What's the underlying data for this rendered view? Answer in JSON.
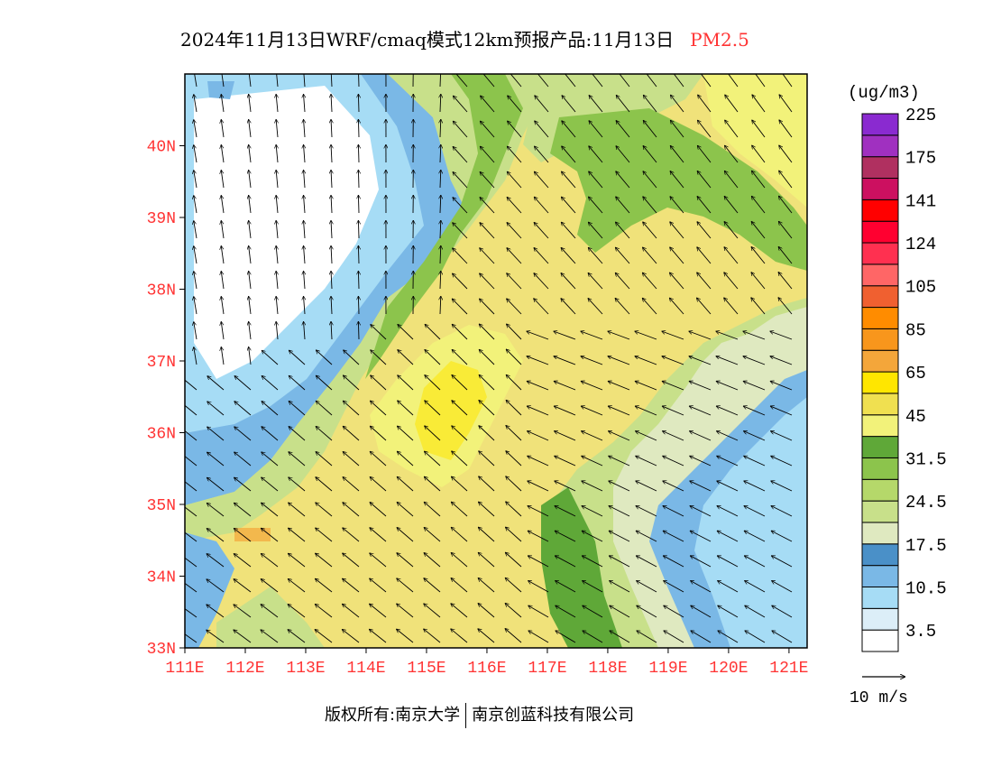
{
  "title": {
    "main": "2024年11月13日WRF/cmaq模式12km预报产品:11月13日",
    "variable": "PM2.5"
  },
  "map": {
    "lat_labels": [
      "40N",
      "39N",
      "38N",
      "37N",
      "36N",
      "35N",
      "34N",
      "33N"
    ],
    "lon_labels": [
      "111E",
      "112E",
      "113E",
      "114E",
      "115E",
      "116E",
      "117E",
      "118E",
      "119E",
      "120E",
      "121E"
    ],
    "lat_range": [
      33,
      41
    ],
    "lon_range": [
      111,
      121.3
    ]
  },
  "colorbar": {
    "unit": "(ug/m3)",
    "colors": [
      "#ffffff",
      "#dceef8",
      "#a6dcf5",
      "#7ab8e6",
      "#4a90c8",
      "#dfe9c0",
      "#c8e08a",
      "#b5d86a",
      "#8cc44c",
      "#5fa838",
      "#f2f27a",
      "#f0e050",
      "#ffe600",
      "#f4a63a",
      "#f8961c",
      "#ff8c00",
      "#f06030",
      "#ff6666",
      "#ff3050",
      "#ff0030",
      "#ff0000",
      "#cc1060",
      "#b03060",
      "#a030c0",
      "#8a2ad0"
    ],
    "tick_labels": [
      "3.5",
      "10.5",
      "17.5",
      "24.5",
      "31.5",
      "45",
      "65",
      "85",
      "105",
      "124",
      "141",
      "175",
      "225"
    ]
  },
  "wind_reference": {
    "label": "10 m/s"
  },
  "footer": {
    "left": "版权所有:南京大学",
    "right": "南京创蓝科技有限公司"
  }
}
